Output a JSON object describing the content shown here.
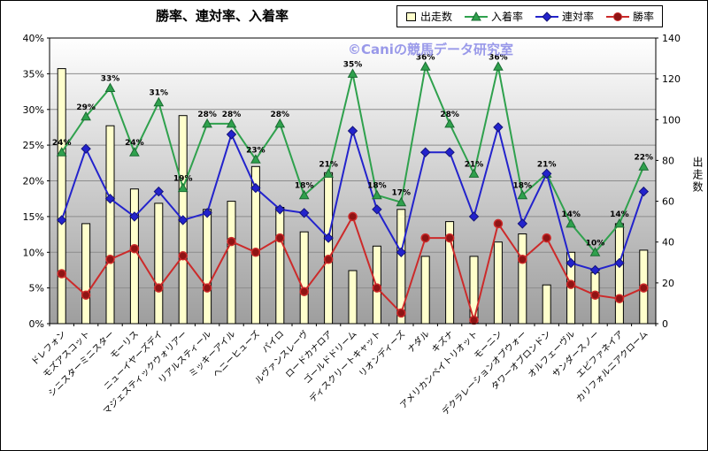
{
  "watermark": "©Caniの競馬データ研究室",
  "legend": [
    {
      "label": "出走数",
      "marker": "bar"
    },
    {
      "label": "入着率",
      "marker": "triangle"
    },
    {
      "label": "連対率",
      "marker": "diamond"
    },
    {
      "label": "勝率",
      "marker": "circle"
    }
  ],
  "colors": {
    "bar_fill": "#FFFFCC",
    "bar_border": "#000000",
    "green": "#2FA14D",
    "green_dark": "#1B6B33",
    "blue": "#2323CC",
    "blue_dark": "#14147A",
    "red": "#CC2A2A",
    "red_dark": "#8F1414",
    "grid": "#8C8C8C",
    "watermark": "#8F8FE8"
  },
  "chart_data": {
    "type": "bar",
    "combo": "bar+line",
    "title": "勝率、連対率、入着率",
    "categories": [
      "ドレフォン",
      "モズアスコット",
      "シニスターミニスター",
      "モーリス",
      "ニューイヤーズデイ",
      "マジェスティックウォリアー",
      "リアルスティール",
      "ミッキーアイル",
      "ヘニーヒューズ",
      "パイロ",
      "ルヴァンスレーヴ",
      "ロードカナロア",
      "ゴールドドリーム",
      "ディスクリートキャット",
      "リオンディーズ",
      "ナダル",
      "キズナ",
      "アメリカンペイトリオット",
      "モーニン",
      "デクラレーションオブウォー",
      "タワーオブロンドン",
      "オルフェーヴル",
      "サンダースノー",
      "エピファネイア",
      "カリフォルニアクローム"
    ],
    "series": [
      {
        "name": "出走数",
        "type": "bar",
        "axis": "right",
        "values": [
          125,
          49,
          97,
          66,
          59,
          102,
          56,
          60,
          77,
          57,
          45,
          74,
          26,
          38,
          56,
          33,
          50,
          33,
          40,
          44,
          19,
          35,
          25,
          49,
          36
        ]
      },
      {
        "name": "入着率",
        "type": "line",
        "marker": "triangle",
        "axis": "left",
        "data_labels": true,
        "values": [
          24,
          29,
          33,
          24,
          31,
          19,
          28,
          28,
          23,
          28,
          18,
          21,
          35,
          18,
          17,
          36,
          28,
          21,
          36,
          18,
          21,
          14,
          10,
          14,
          22
        ]
      },
      {
        "name": "連対率",
        "type": "line",
        "marker": "diamond",
        "axis": "left",
        "data_labels": false,
        "values": [
          14.5,
          24.5,
          17.5,
          15,
          18.5,
          14.5,
          15.5,
          26.5,
          19,
          16,
          15.5,
          12,
          27,
          16,
          10,
          24,
          24,
          15,
          27.5,
          14,
          21,
          8.5,
          7.5,
          8.5,
          18.5
        ]
      },
      {
        "name": "勝率",
        "type": "line",
        "marker": "circle",
        "axis": "left",
        "data_labels": false,
        "values": [
          7,
          4,
          9,
          10.5,
          5,
          9.5,
          5,
          11.5,
          10,
          12,
          4.5,
          9,
          15,
          5,
          1.5,
          12,
          12,
          0.5,
          14,
          9,
          12,
          5.5,
          4,
          3.5,
          5
        ]
      }
    ],
    "left_axis": {
      "min": 0,
      "max": 40,
      "step": 5,
      "suffix": "%"
    },
    "right_axis": {
      "min": 0,
      "max": 140,
      "step": 20,
      "label": "出走数"
    },
    "grid": true,
    "legend_position": "top-right"
  }
}
